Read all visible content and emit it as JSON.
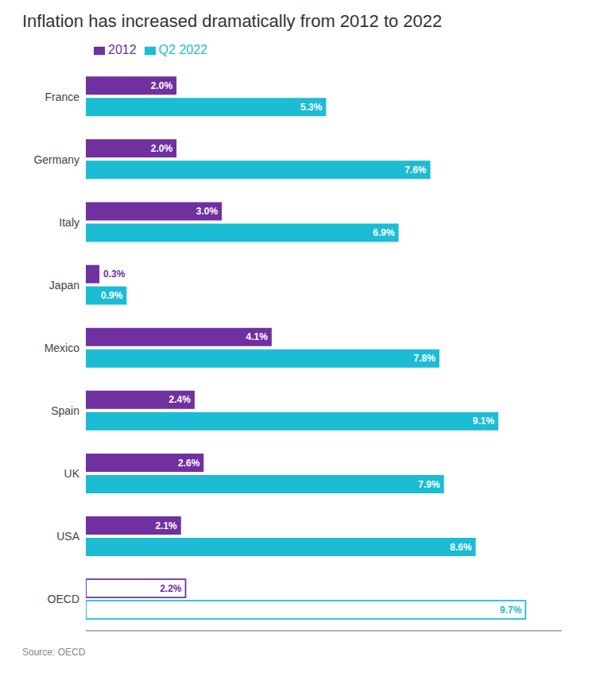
{
  "chart_data": {
    "type": "bar",
    "orientation": "horizontal",
    "title": "Inflation has increased dramatically from 2012 to 2022",
    "categories": [
      "France",
      "Germany",
      "Italy",
      "Japan",
      "Mexico",
      "Spain",
      "UK",
      "USA",
      "OECD"
    ],
    "series": [
      {
        "name": "2012",
        "color": "#7030A0",
        "values": [
          2.0,
          2.0,
          3.0,
          0.3,
          4.1,
          2.4,
          2.6,
          2.1,
          2.2
        ],
        "value_labels": [
          "2.0%",
          "2.0%",
          "3.0%",
          "0.3%",
          "4.1%",
          "2.4%",
          "2.6%",
          "2.1%",
          "2.2%"
        ]
      },
      {
        "name": "Q2 2022",
        "color": "#1BBCD4",
        "values": [
          5.3,
          7.6,
          6.9,
          0.9,
          7.8,
          9.1,
          7.9,
          8.6,
          9.7
        ],
        "value_labels": [
          "5.3%",
          "7.6%",
          "6.9%",
          "0.9%",
          "7.8%",
          "9.1%",
          "7.9%",
          "8.6%",
          "9.7%"
        ]
      }
    ],
    "xlim": [
      0,
      10.5
    ],
    "data_labels": true,
    "tick_labels": "y",
    "legend": "top",
    "grid": false,
    "annotations": [
      "Source: OECD"
    ]
  }
}
